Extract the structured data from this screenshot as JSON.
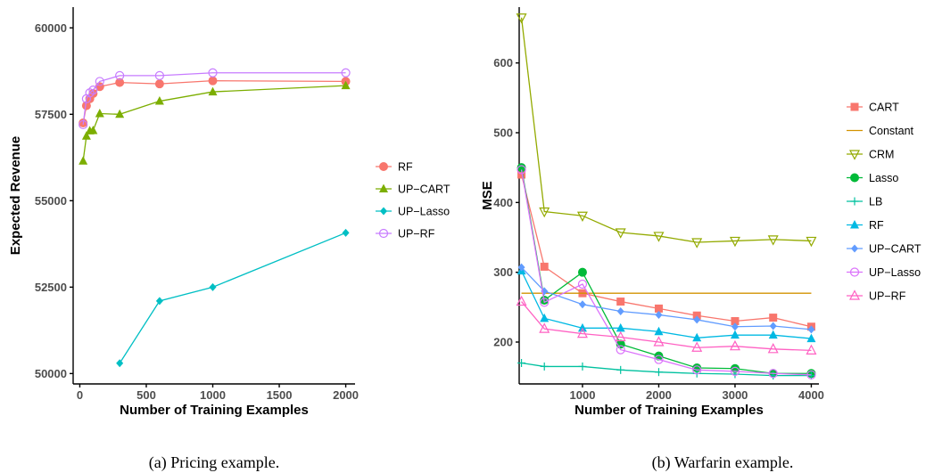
{
  "chart_data": [
    {
      "type": "line",
      "caption": "(a) Pricing example.",
      "xlabel": "Number of Training Examples",
      "ylabel": "Expected Revenue",
      "xlim": [
        -50,
        2070
      ],
      "ylim": [
        49700,
        60600
      ],
      "xticks": [
        0,
        500,
        1000,
        1500,
        2000
      ],
      "yticks": [
        50000,
        52500,
        55000,
        57500,
        60000
      ],
      "legend_position": "right",
      "grid": false,
      "series": [
        {
          "name": "RF",
          "color": "#f8766d",
          "marker": "circle-filled",
          "x": [
            25,
            50,
            75,
            100,
            150,
            300,
            600,
            1000,
            2000
          ],
          "y": [
            57250,
            57750,
            57950,
            58100,
            58300,
            58420,
            58380,
            58470,
            58450
          ]
        },
        {
          "name": "UP−CART",
          "color": "#7cae00",
          "marker": "triangle-filled",
          "x": [
            25,
            50,
            75,
            100,
            150,
            300,
            600,
            1000,
            2000
          ],
          "y": [
            56150,
            56870,
            57020,
            57030,
            57520,
            57500,
            57880,
            58150,
            58330
          ]
        },
        {
          "name": "UP−Lasso",
          "color": "#00bfc4",
          "marker": "diamond-filled",
          "x": [
            300,
            600,
            1000,
            2000
          ],
          "y": [
            50300,
            52100,
            52500,
            54070
          ]
        },
        {
          "name": "UP−RF",
          "color": "#c77cff",
          "marker": "circle-open",
          "x": [
            25,
            50,
            75,
            100,
            150,
            300,
            600,
            1000,
            2000
          ],
          "y": [
            57200,
            57950,
            58120,
            58200,
            58450,
            58620,
            58620,
            58700,
            58700
          ]
        }
      ]
    },
    {
      "type": "line",
      "caption": "(b) Warfarin example.",
      "xlabel": "Number of Training Examples",
      "ylabel": "MSE",
      "xlim": [
        170,
        4100
      ],
      "ylim": [
        140,
        680
      ],
      "xticks": [
        1000,
        2000,
        3000,
        4000
      ],
      "yticks": [
        200,
        300,
        400,
        500,
        600
      ],
      "legend_position": "right",
      "grid": false,
      "series": [
        {
          "name": "CART",
          "color": "#f8766d",
          "marker": "square-filled",
          "x": [
            200,
            500,
            1000,
            1500,
            2000,
            2500,
            3000,
            3500,
            4000
          ],
          "y": [
            440,
            308,
            270,
            258,
            248,
            238,
            230,
            235,
            222
          ]
        },
        {
          "name": "Constant",
          "color": "#d39200",
          "marker": "none",
          "x": [
            200,
            4000
          ],
          "y": [
            270,
            270
          ]
        },
        {
          "name": "CRM",
          "color": "#93aa00",
          "marker": "triangle-down-open",
          "x": [
            200,
            500,
            1000,
            1500,
            2000,
            2500,
            3000,
            3500,
            4000
          ],
          "y": [
            665,
            387,
            381,
            357,
            352,
            343,
            345,
            347,
            345
          ]
        },
        {
          "name": "Lasso",
          "color": "#00ba38",
          "marker": "circle-filled",
          "x": [
            200,
            500,
            1000,
            1500,
            2000,
            2500,
            3000,
            3500,
            4000
          ],
          "y": [
            450,
            260,
            300,
            197,
            180,
            163,
            162,
            155,
            155
          ]
        },
        {
          "name": "LB",
          "color": "#00c19f",
          "marker": "plus",
          "x": [
            200,
            500,
            1000,
            1500,
            2000,
            2500,
            3000,
            3500,
            4000
          ],
          "y": [
            170,
            165,
            165,
            160,
            157,
            155,
            154,
            152,
            152
          ]
        },
        {
          "name": "RF",
          "color": "#00b9e3",
          "marker": "triangle-filled",
          "x": [
            200,
            500,
            1000,
            1500,
            2000,
            2500,
            3000,
            3500,
            4000
          ],
          "y": [
            302,
            234,
            220,
            220,
            215,
            206,
            210,
            210,
            205
          ]
        },
        {
          "name": "UP−CART",
          "color": "#619cff",
          "marker": "diamond-filled",
          "x": [
            200,
            500,
            1000,
            1500,
            2000,
            2500,
            3000,
            3500,
            4000
          ],
          "y": [
            307,
            273,
            254,
            244,
            239,
            232,
            222,
            223,
            218
          ]
        },
        {
          "name": "UP−Lasso",
          "color": "#db72fb",
          "marker": "circle-open",
          "x": [
            200,
            500,
            1000,
            1500,
            2000,
            2500,
            3000,
            3500,
            4000
          ],
          "y": [
            447,
            257,
            283,
            189,
            175,
            160,
            158,
            155,
            153
          ]
        },
        {
          "name": "UP−RF",
          "color": "#ff61c3",
          "marker": "triangle-open",
          "x": [
            200,
            500,
            1000,
            1500,
            2000,
            2500,
            3000,
            3500,
            4000
          ],
          "y": [
            258,
            219,
            212,
            207,
            200,
            192,
            194,
            190,
            188
          ]
        }
      ]
    }
  ]
}
